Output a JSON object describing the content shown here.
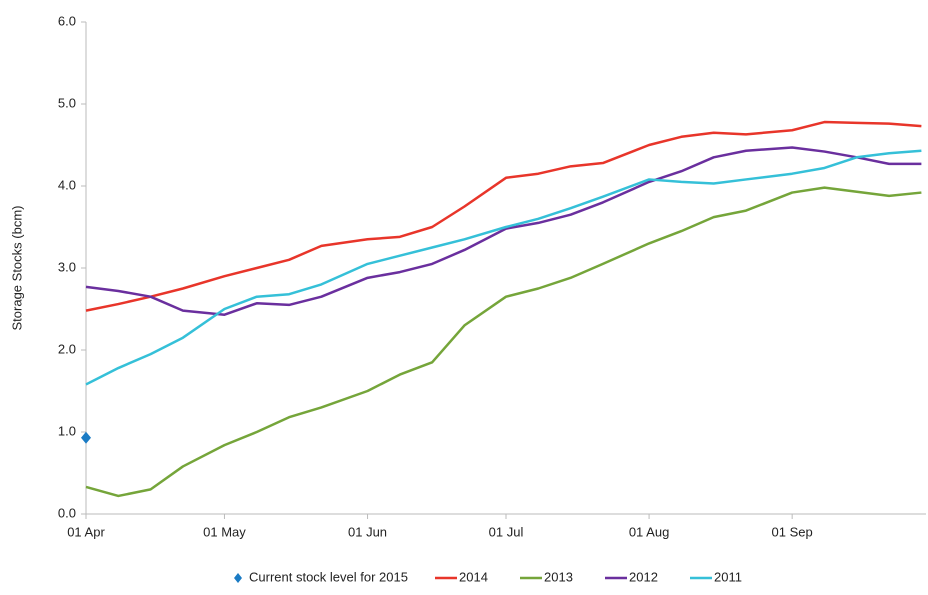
{
  "chart_data": {
    "type": "line",
    "y_label": "Storage Stocks (bcm)",
    "x": [
      "01 Apr",
      "08 Apr",
      "15 Apr",
      "22 Apr",
      "01 May",
      "08 May",
      "15 May",
      "22 May",
      "01 Jun",
      "08 Jun",
      "15 Jun",
      "22 Jun",
      "01 Jul",
      "08 Jul",
      "15 Jul",
      "22 Jul",
      "01 Aug",
      "08 Aug",
      "15 Aug",
      "22 Aug",
      "01 Sep",
      "08 Sep",
      "15 Sep",
      "22 Sep",
      "29 Sep"
    ],
    "xlim": [
      "01 Apr",
      "30 Sep"
    ],
    "xticks": [
      "01 Apr",
      "01 May",
      "01 Jun",
      "01 Jul",
      "01 Aug",
      "01 Sep"
    ],
    "ylim": [
      0,
      6
    ],
    "yticks": [
      {
        "value": 0,
        "label": "0.0"
      },
      {
        "value": 1,
        "label": "1.0"
      },
      {
        "value": 2,
        "label": "2.0"
      },
      {
        "value": 3,
        "label": "3.0"
      },
      {
        "value": 4,
        "label": "4.0"
      },
      {
        "value": 5,
        "label": "5.0"
      },
      {
        "value": 6,
        "label": "6.0"
      }
    ],
    "series": [
      {
        "name": "Current stock level for 2015",
        "color": "#1a7bc4",
        "marker": "diamond",
        "values": [
          0.93,
          null,
          null,
          null,
          null,
          null,
          null,
          null,
          null,
          null,
          null,
          null,
          null,
          null,
          null,
          null,
          null,
          null,
          null,
          null,
          null,
          null,
          null,
          null,
          null
        ]
      },
      {
        "name": "2014",
        "color": "#e8352a",
        "values": [
          2.48,
          2.56,
          2.65,
          2.75,
          2.9,
          3.0,
          3.1,
          3.27,
          3.35,
          3.38,
          3.5,
          3.75,
          4.1,
          4.15,
          4.24,
          4.28,
          4.5,
          4.6,
          4.65,
          4.63,
          4.68,
          4.78,
          4.77,
          4.76,
          4.73
        ]
      },
      {
        "name": "2013",
        "color": "#75a53a",
        "values": [
          0.33,
          0.22,
          0.3,
          0.58,
          0.84,
          1.0,
          1.18,
          1.3,
          1.5,
          1.7,
          1.85,
          2.3,
          2.65,
          2.75,
          2.88,
          3.05,
          3.3,
          3.45,
          3.62,
          3.7,
          3.92,
          3.98,
          3.93,
          3.88,
          3.92
        ]
      },
      {
        "name": "2012",
        "color": "#6a2f9e",
        "values": [
          2.77,
          2.72,
          2.65,
          2.48,
          2.43,
          2.57,
          2.55,
          2.65,
          2.88,
          2.95,
          3.05,
          3.22,
          3.48,
          3.55,
          3.65,
          3.8,
          4.05,
          4.18,
          4.35,
          4.43,
          4.47,
          4.42,
          4.35,
          4.27,
          4.27
        ]
      },
      {
        "name": "2011",
        "color": "#35c0d8",
        "values": [
          1.58,
          1.78,
          1.95,
          2.15,
          2.5,
          2.65,
          2.68,
          2.8,
          3.05,
          3.15,
          3.25,
          3.35,
          3.5,
          3.6,
          3.73,
          3.87,
          4.08,
          4.05,
          4.03,
          4.08,
          4.15,
          4.22,
          4.35,
          4.4,
          4.43
        ]
      }
    ]
  }
}
